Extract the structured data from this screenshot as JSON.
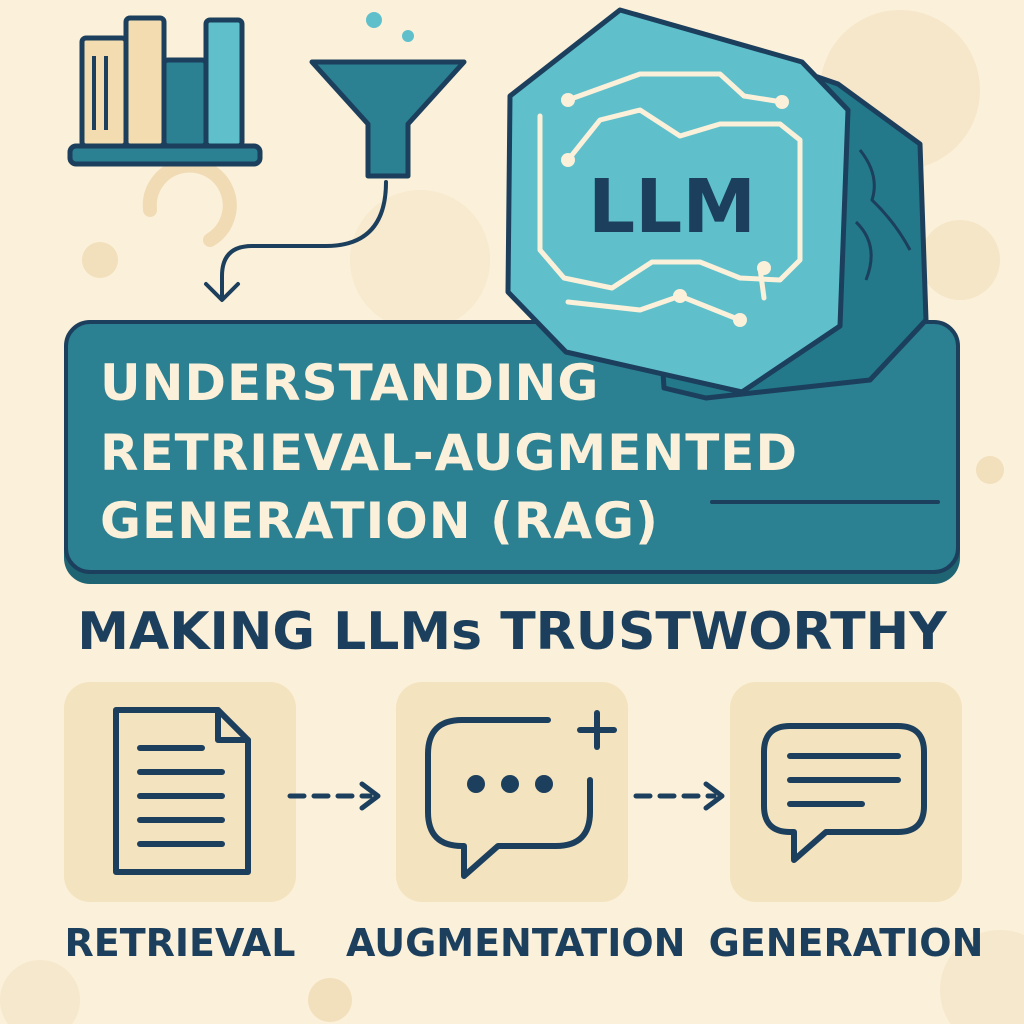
{
  "title": {
    "line1": "UNDERSTANDING",
    "line2": "RETRIEVAL-AUGMENTED",
    "line3": "GENERATION (RAG)"
  },
  "subtitle": "MAKING LLMs TRUSTWORTHY",
  "chip_label": "LLM",
  "steps": [
    {
      "label": "RETRIEVAL",
      "icon": "document-icon"
    },
    {
      "label": "AUGMENTATION",
      "icon": "chat-plus-icon"
    },
    {
      "label": "GENERATION",
      "icon": "chat-lines-icon"
    }
  ],
  "colors": {
    "background": "#fbf0d9",
    "teal": "#2b8092",
    "navy": "#1b3f5c",
    "light_teal": "#5fc0cc",
    "cream": "#fbf0d9"
  }
}
